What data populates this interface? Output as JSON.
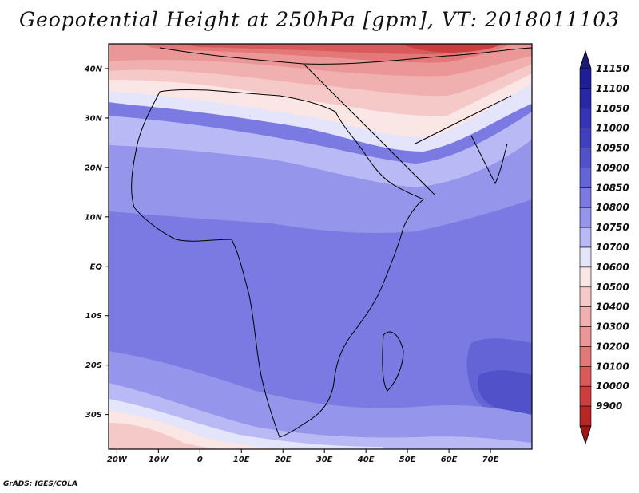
{
  "title": "Geopotential Height at 250hPa [gpm], VT: 2018011103",
  "credit": "GrADS: IGES/COLA",
  "map": {
    "lat_range": [
      -37,
      45
    ],
    "lon_range": [
      -22,
      80
    ],
    "lat_ticks": [
      {
        "value": 40,
        "label": "40N"
      },
      {
        "value": 30,
        "label": "30N"
      },
      {
        "value": 20,
        "label": "20N"
      },
      {
        "value": 10,
        "label": "10N"
      },
      {
        "value": 0,
        "label": "EQ"
      },
      {
        "value": -10,
        "label": "10S"
      },
      {
        "value": -20,
        "label": "20S"
      },
      {
        "value": -30,
        "label": "30S"
      }
    ],
    "lon_ticks": [
      {
        "value": -20,
        "label": "20W"
      },
      {
        "value": -10,
        "label": "10W"
      },
      {
        "value": 0,
        "label": "0"
      },
      {
        "value": 10,
        "label": "10E"
      },
      {
        "value": 20,
        "label": "20E"
      },
      {
        "value": 30,
        "label": "30E"
      },
      {
        "value": 40,
        "label": "40E"
      },
      {
        "value": 50,
        "label": "50E"
      },
      {
        "value": 60,
        "label": "60E"
      },
      {
        "value": 70,
        "label": "70E"
      }
    ]
  },
  "colorbar": {
    "levels": [
      {
        "label": "11150",
        "color": "#1e1e96"
      },
      {
        "label": "11100",
        "color": "#2828a5"
      },
      {
        "label": "11050",
        "color": "#3434b4"
      },
      {
        "label": "11000",
        "color": "#4141bf"
      },
      {
        "label": "10950",
        "color": "#5151c9"
      },
      {
        "label": "10900",
        "color": "#6464d6"
      },
      {
        "label": "10850",
        "color": "#7a7ae2"
      },
      {
        "label": "10800",
        "color": "#9595ec"
      },
      {
        "label": "10750",
        "color": "#b9b9f5"
      },
      {
        "label": "10700",
        "color": "#e4e4fb"
      },
      {
        "label": "10600",
        "color": "#fbe6e6"
      },
      {
        "label": "10500",
        "color": "#f6c9c9"
      },
      {
        "label": "10400",
        "color": "#f1b0b0"
      },
      {
        "label": "10300",
        "color": "#eb9797"
      },
      {
        "label": "10200",
        "color": "#e27878"
      },
      {
        "label": "10100",
        "color": "#d95a5a"
      },
      {
        "label": "10000",
        "color": "#cc3e3e"
      },
      {
        "label": "9900",
        "color": "#b92626"
      }
    ],
    "top_arrow_color": "#191978",
    "bottom_arrow_color": "#a01616"
  }
}
